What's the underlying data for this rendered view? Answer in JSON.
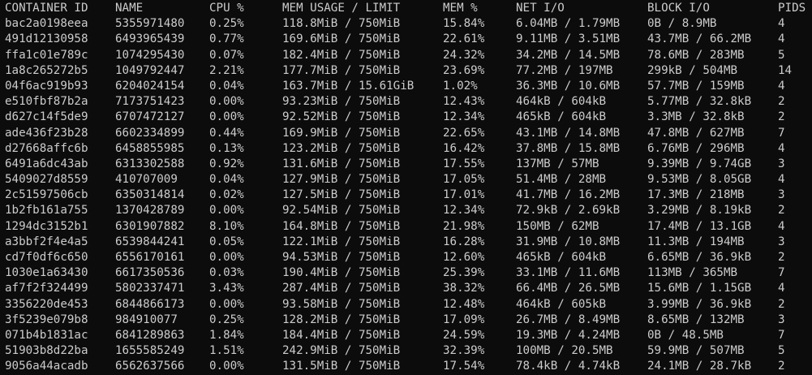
{
  "header": {
    "container_id": "CONTAINER ID",
    "name": "NAME",
    "cpu": "CPU %",
    "mem_usage": "MEM USAGE / LIMIT",
    "mem_pct": "MEM %",
    "net_io": "NET I/O",
    "block_io": "BLOCK I/O",
    "pids": "PIDS"
  },
  "rows": [
    {
      "id": "bac2a0198eea",
      "name": "5355971480",
      "cpu": "0.25%",
      "mem": "118.8MiB / 750MiB",
      "pct": "15.84%",
      "net": "6.04MB / 1.79MB",
      "block": "0B / 8.9MB",
      "pids": "4"
    },
    {
      "id": "491d12130958",
      "name": "6493965439",
      "cpu": "0.77%",
      "mem": "169.6MiB / 750MiB",
      "pct": "22.61%",
      "net": "9.11MB / 3.51MB",
      "block": "43.7MB / 66.2MB",
      "pids": "4"
    },
    {
      "id": "ffa1c01e789c",
      "name": "1074295430",
      "cpu": "0.07%",
      "mem": "182.4MiB / 750MiB",
      "pct": "24.32%",
      "net": "34.2MB / 14.5MB",
      "block": "78.6MB / 283MB",
      "pids": "5"
    },
    {
      "id": "1a8c265272b5",
      "name": "1049792447",
      "cpu": "2.21%",
      "mem": "177.7MiB / 750MiB",
      "pct": "23.69%",
      "net": "77.2MB / 197MB",
      "block": "299kB / 504MB",
      "pids": "14"
    },
    {
      "id": "04f6ac919b93",
      "name": "6204024154",
      "cpu": "0.04%",
      "mem": "163.7MiB / 15.61GiB",
      "pct": "1.02%",
      "net": "36.3MB / 10.6MB",
      "block": "57.7MB / 159MB",
      "pids": "4"
    },
    {
      "id": "e510fbf87b2a",
      "name": "7173751423",
      "cpu": "0.00%",
      "mem": "93.23MiB / 750MiB",
      "pct": "12.43%",
      "net": "464kB / 604kB",
      "block": "5.77MB / 32.8kB",
      "pids": "2"
    },
    {
      "id": "d627c14f5de9",
      "name": "6707472127",
      "cpu": "0.00%",
      "mem": "92.52MiB / 750MiB",
      "pct": "12.34%",
      "net": "465kB / 604kB",
      "block": "3.3MB / 32.8kB",
      "pids": "2"
    },
    {
      "id": "ade436f23b28",
      "name": "6602334899",
      "cpu": "0.44%",
      "mem": "169.9MiB / 750MiB",
      "pct": "22.65%",
      "net": "43.1MB / 14.8MB",
      "block": "47.8MB / 627MB",
      "pids": "7"
    },
    {
      "id": "d27668affc6b",
      "name": "6458855985",
      "cpu": "0.13%",
      "mem": "123.2MiB / 750MiB",
      "pct": "16.42%",
      "net": "37.8MB / 15.8MB",
      "block": "6.76MB / 296MB",
      "pids": "4"
    },
    {
      "id": "6491a6dc43ab",
      "name": "6313302588",
      "cpu": "0.92%",
      "mem": "131.6MiB / 750MiB",
      "pct": "17.55%",
      "net": "137MB / 57MB",
      "block": "9.39MB / 9.74GB",
      "pids": "3"
    },
    {
      "id": "5409027d8559",
      "name": "410707009",
      "cpu": "0.04%",
      "mem": "127.9MiB / 750MiB",
      "pct": "17.05%",
      "net": "51.4MB / 28MB",
      "block": "9.53MB / 8.05GB",
      "pids": "4"
    },
    {
      "id": "2c51597506cb",
      "name": "6350314814",
      "cpu": "0.02%",
      "mem": "127.5MiB / 750MiB",
      "pct": "17.01%",
      "net": "41.7MB / 16.2MB",
      "block": "17.3MB / 218MB",
      "pids": "3"
    },
    {
      "id": "1b2fb161a755",
      "name": "1370428789",
      "cpu": "0.00%",
      "mem": "92.54MiB / 750MiB",
      "pct": "12.34%",
      "net": "72.9kB / 2.69kB",
      "block": "3.29MB / 8.19kB",
      "pids": "2"
    },
    {
      "id": "1294dc3152b1",
      "name": "6301907882",
      "cpu": "8.10%",
      "mem": "164.8MiB / 750MiB",
      "pct": "21.98%",
      "net": "150MB / 62MB",
      "block": "17.4MB / 13.1GB",
      "pids": "4"
    },
    {
      "id": "a3bbf2f4e4a5",
      "name": "6539844241",
      "cpu": "0.05%",
      "mem": "122.1MiB / 750MiB",
      "pct": "16.28%",
      "net": "31.9MB / 10.8MB",
      "block": "11.3MB / 194MB",
      "pids": "3"
    },
    {
      "id": "cd7f0df6c650",
      "name": "6556170161",
      "cpu": "0.00%",
      "mem": "94.53MiB / 750MiB",
      "pct": "12.60%",
      "net": "465kB / 604kB",
      "block": "6.65MB / 36.9kB",
      "pids": "2"
    },
    {
      "id": "1030e1a63430",
      "name": "6617350536",
      "cpu": "0.03%",
      "mem": "190.4MiB / 750MiB",
      "pct": "25.39%",
      "net": "33.1MB / 11.6MB",
      "block": "113MB / 365MB",
      "pids": "7"
    },
    {
      "id": "af7f2f324499",
      "name": "5802337471",
      "cpu": "3.43%",
      "mem": "287.4MiB / 750MiB",
      "pct": "38.32%",
      "net": "66.4MB / 26.5MB",
      "block": "15.6MB / 1.15GB",
      "pids": "4"
    },
    {
      "id": "3356220de453",
      "name": "6844866173",
      "cpu": "0.00%",
      "mem": "93.58MiB / 750MiB",
      "pct": "12.48%",
      "net": "464kB / 605kB",
      "block": "3.99MB / 36.9kB",
      "pids": "2"
    },
    {
      "id": "3f5239e079b8",
      "name": "984910077",
      "cpu": "0.25%",
      "mem": "128.2MiB / 750MiB",
      "pct": "17.09%",
      "net": "26.7MB / 8.49MB",
      "block": "8.65MB / 132MB",
      "pids": "3"
    },
    {
      "id": "071b4b1831ac",
      "name": "6841289863",
      "cpu": "1.84%",
      "mem": "184.4MiB / 750MiB",
      "pct": "24.59%",
      "net": "19.3MB / 4.24MB",
      "block": "0B / 48.5MB",
      "pids": "7"
    },
    {
      "id": "51903b8d22ba",
      "name": "1655585249",
      "cpu": "1.51%",
      "mem": "242.9MiB / 750MiB",
      "pct": "32.39%",
      "net": "100MB / 20.5MB",
      "block": "59.9MB / 507MB",
      "pids": "5"
    },
    {
      "id": "9056a44acadb",
      "name": "6562637566",
      "cpu": "0.00%",
      "mem": "131.5MiB / 750MiB",
      "pct": "17.54%",
      "net": "78.4kB / 4.74kB",
      "block": "24.1MB / 28.7kB",
      "pids": "2"
    }
  ]
}
